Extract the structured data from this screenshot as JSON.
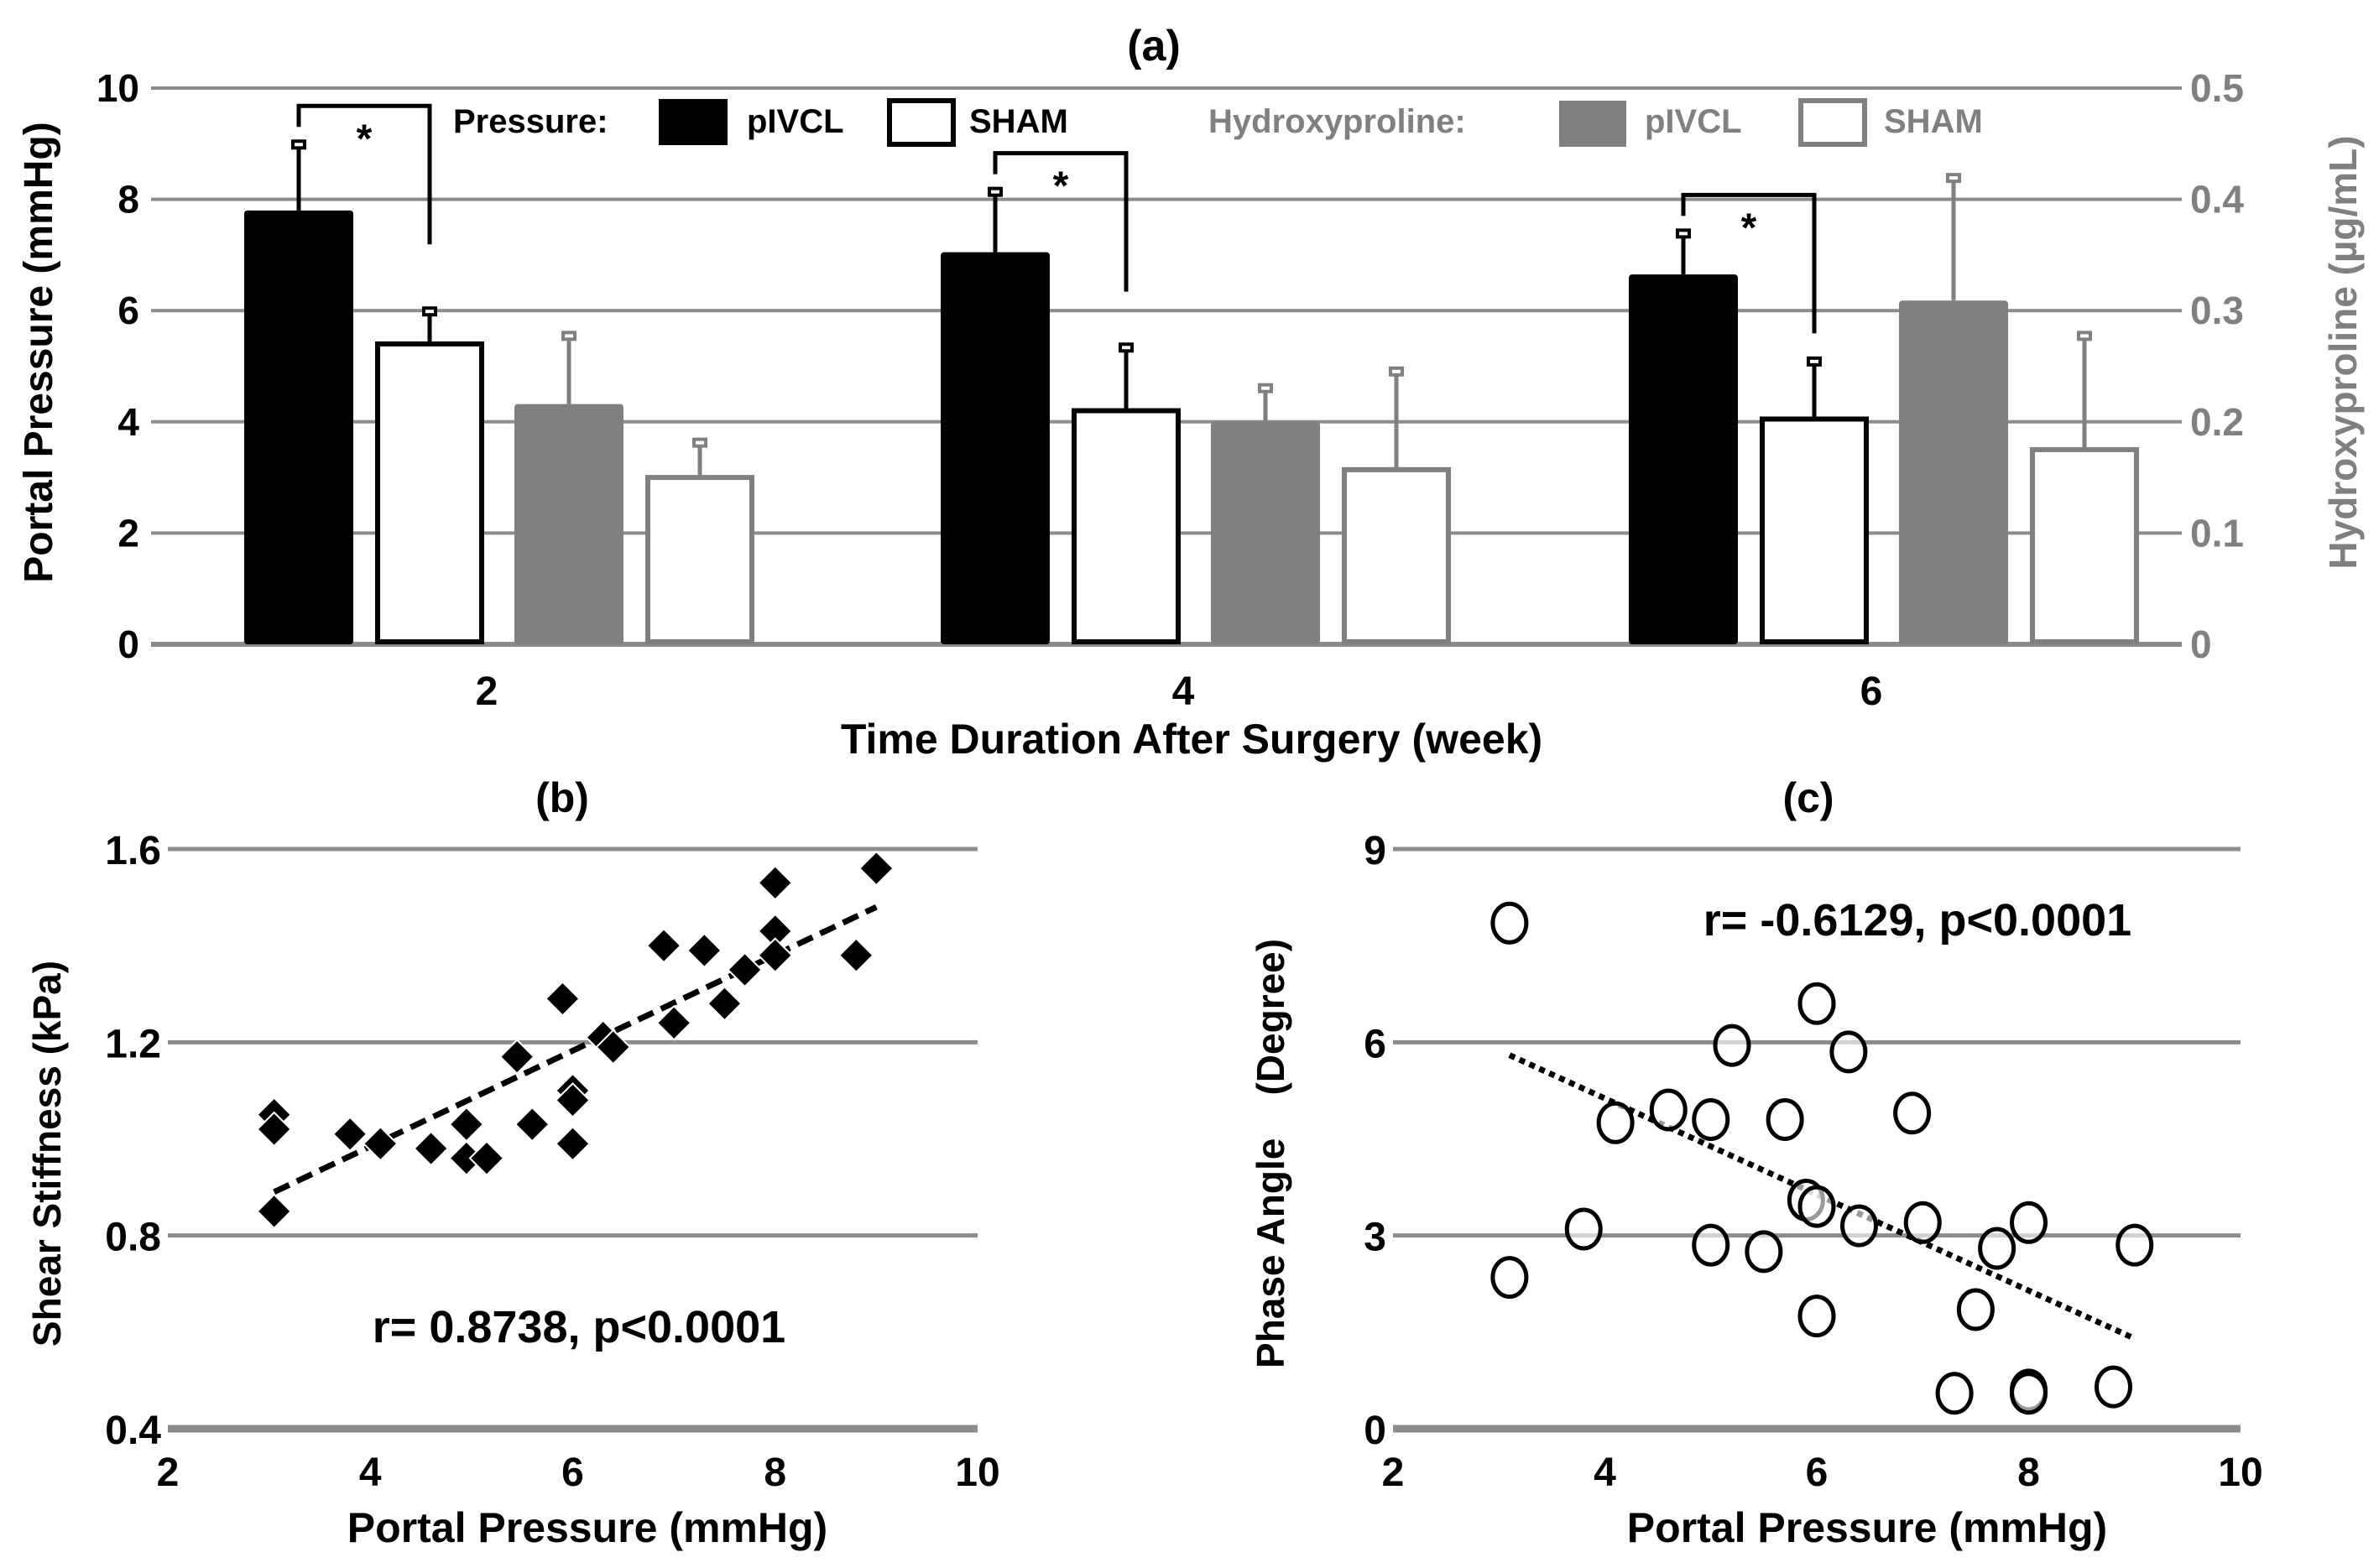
{
  "chart_data": [
    {
      "id": "a",
      "type": "bar",
      "title": "(a)",
      "xlabel": "Time Duration After Surgery (week)",
      "ylabel": "Portal Pressure (mmHg)",
      "y2label": "Hydroxyproline (µg/mL)",
      "categories": [
        "2",
        "4",
        "6"
      ],
      "ylim": [
        0,
        10
      ],
      "y2lim": [
        0,
        0.5
      ],
      "yticks": [
        "0",
        "2",
        "4",
        "6",
        "8",
        "10"
      ],
      "y2ticks": [
        "0",
        "0.1",
        "0.2",
        "0.3",
        "0.4",
        "0.5"
      ],
      "grid": true,
      "legend": {
        "pressure_label": "Pressure:",
        "hydroxy_label": "Hydroxyproline:",
        "pivcl": "pIVCL",
        "sham": "SHAM"
      },
      "series": [
        {
          "name": "Pressure pIVCL",
          "axis": "left",
          "values": [
            7.8,
            7.05,
            6.65
          ],
          "errors": [
            1.2,
            1.1,
            0.75
          ],
          "fill": "#000000",
          "stroke": "#000000"
        },
        {
          "name": "Pressure SHAM",
          "axis": "left",
          "values": [
            5.4,
            4.2,
            4.05
          ],
          "errors": [
            0.6,
            1.15,
            1.05
          ],
          "fill": "#ffffff",
          "stroke": "#000000"
        },
        {
          "name": "Hydroxyproline pIVCL",
          "axis": "right",
          "values": [
            0.216,
            0.2,
            0.309
          ],
          "errors": [
            0.062,
            0.031,
            0.111
          ],
          "fill": "#808080",
          "stroke": "#808080"
        },
        {
          "name": "Hydroxyproline SHAM",
          "axis": "right",
          "values": [
            0.15,
            0.157,
            0.175
          ],
          "errors": [
            0.032,
            0.089,
            0.103
          ],
          "fill": "#ffffff",
          "stroke": "#808080"
        }
      ],
      "significance": [
        {
          "category": "2",
          "label": "*"
        },
        {
          "category": "4",
          "label": "*"
        },
        {
          "category": "6",
          "label": "*"
        }
      ]
    },
    {
      "id": "b",
      "type": "scatter",
      "title": "(b)",
      "xlabel": "Portal Pressure (mmHg)",
      "ylabel": "Shear Stiffness (kPa)",
      "xlim": [
        2,
        10
      ],
      "ylim": [
        0.4,
        1.6
      ],
      "xticks": [
        "2",
        "4",
        "6",
        "8",
        "10"
      ],
      "yticks": [
        "0.4",
        "0.8",
        "1.2",
        "1.6"
      ],
      "marker": "diamond-filled",
      "annotation": "r= 0.8738, p<0.0001",
      "trendline": {
        "style": "dashed",
        "x": [
          3.05,
          9.0
        ],
        "y": [
          0.89,
          1.48
        ]
      },
      "points": [
        [
          3.05,
          1.05
        ],
        [
          3.05,
          1.02
        ],
        [
          3.05,
          0.85
        ],
        [
          3.8,
          1.01
        ],
        [
          4.1,
          0.99
        ],
        [
          4.6,
          0.98
        ],
        [
          4.95,
          1.03
        ],
        [
          4.95,
          0.96
        ],
        [
          5.15,
          0.96
        ],
        [
          5.45,
          1.17
        ],
        [
          5.6,
          1.03
        ],
        [
          5.9,
          1.29
        ],
        [
          6.0,
          1.1
        ],
        [
          6.0,
          1.08
        ],
        [
          6.0,
          0.99
        ],
        [
          6.3,
          1.21
        ],
        [
          6.4,
          1.19
        ],
        [
          6.9,
          1.4
        ],
        [
          7.0,
          1.24
        ],
        [
          7.3,
          1.39
        ],
        [
          7.5,
          1.28
        ],
        [
          7.7,
          1.35
        ],
        [
          8.0,
          1.53
        ],
        [
          8.0,
          1.43
        ],
        [
          8.0,
          1.38
        ],
        [
          8.8,
          1.38
        ],
        [
          9.0,
          1.56
        ]
      ]
    },
    {
      "id": "c",
      "type": "scatter",
      "title": "(c)",
      "xlabel": "Portal Pressure (mmHg)",
      "ylabel": "Phase Angle    (Degree)",
      "xlim": [
        2,
        10
      ],
      "ylim": [
        0,
        9
      ],
      "xticks": [
        "2",
        "4",
        "6",
        "8",
        "10"
      ],
      "yticks": [
        "0",
        "3",
        "6",
        "9"
      ],
      "marker": "circle-open",
      "annotation": "r= -0.6129, p<0.0001",
      "trendline": {
        "style": "dotted",
        "x": [
          3.1,
          9.0
        ],
        "y": [
          5.8,
          1.4
        ]
      },
      "points": [
        [
          3.1,
          7.85
        ],
        [
          3.1,
          2.35
        ],
        [
          3.8,
          3.1
        ],
        [
          4.1,
          4.75
        ],
        [
          4.6,
          4.95
        ],
        [
          5.0,
          4.8
        ],
        [
          5.0,
          2.85
        ],
        [
          5.2,
          5.95
        ],
        [
          5.5,
          2.75
        ],
        [
          5.7,
          4.8
        ],
        [
          5.9,
          3.55
        ],
        [
          6.0,
          3.45
        ],
        [
          6.0,
          6.6
        ],
        [
          6.0,
          1.75
        ],
        [
          6.3,
          5.85
        ],
        [
          6.4,
          3.15
        ],
        [
          6.9,
          4.9
        ],
        [
          7.0,
          3.2
        ],
        [
          7.3,
          0.55
        ],
        [
          7.5,
          1.85
        ],
        [
          7.7,
          2.8
        ],
        [
          8.0,
          3.2
        ],
        [
          8.0,
          0.6
        ],
        [
          8.0,
          0.55
        ],
        [
          8.8,
          0.65
        ],
        [
          9.0,
          2.85
        ]
      ]
    }
  ]
}
